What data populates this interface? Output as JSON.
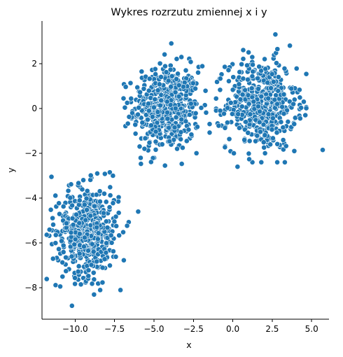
{
  "chart_data": {
    "type": "scatter",
    "title": "Wykres rozrzutu zmiennej x i y",
    "xlabel": "x",
    "ylabel": "y",
    "xlim": [
      -12.1,
      6.1
    ],
    "ylim": [
      -9.4,
      3.9
    ],
    "grid": false,
    "legend": "none",
    "point_color": "#1f77b4",
    "x_ticks": [
      -10,
      -7.5,
      -5,
      -2.5,
      0,
      2.5,
      5
    ],
    "x_tick_labels": [
      "−10.0",
      "−7.5",
      "−5.0",
      "−2.5",
      "0.0",
      "2.5",
      "5.0"
    ],
    "y_ticks": [
      -8,
      -6,
      -4,
      -2,
      0,
      2
    ],
    "y_tick_labels": [
      "−8",
      "−6",
      "−4",
      "−2",
      "0",
      "2"
    ],
    "clusters": [
      {
        "center": [
          -4.2,
          0.0
        ],
        "spread": [
          1.05,
          0.95
        ],
        "count": 500
      },
      {
        "center": [
          1.8,
          0.2
        ],
        "spread": [
          1.1,
          1.0
        ],
        "count": 500
      },
      {
        "center": [
          -9.2,
          -5.5
        ],
        "spread": [
          1.0,
          1.0
        ],
        "count": 500
      }
    ],
    "outliers": [
      [
        -11.5,
        -3.05
      ],
      [
        -10.2,
        -8.8
      ],
      [
        -7.8,
        -2.85
      ],
      [
        -3.9,
        2.9
      ],
      [
        -4.3,
        -2.55
      ],
      [
        2.7,
        3.3
      ],
      [
        5.7,
        -1.85
      ],
      [
        0.3,
        -2.6
      ],
      [
        -7.6,
        -3.0
      ],
      [
        -11.4,
        -6.7
      ],
      [
        -8.8,
        -8.3
      ],
      [
        -6.7,
        0.25
      ],
      [
        -2.2,
        1.6
      ],
      [
        4.6,
        -0.3
      ],
      [
        -0.8,
        -0.1
      ],
      [
        -10.8,
        -7.5
      ],
      [
        -6.0,
        -4.6
      ],
      [
        3.9,
        -1.9
      ],
      [
        1.0,
        2.5
      ],
      [
        -5.6,
        -1.8
      ]
    ]
  }
}
